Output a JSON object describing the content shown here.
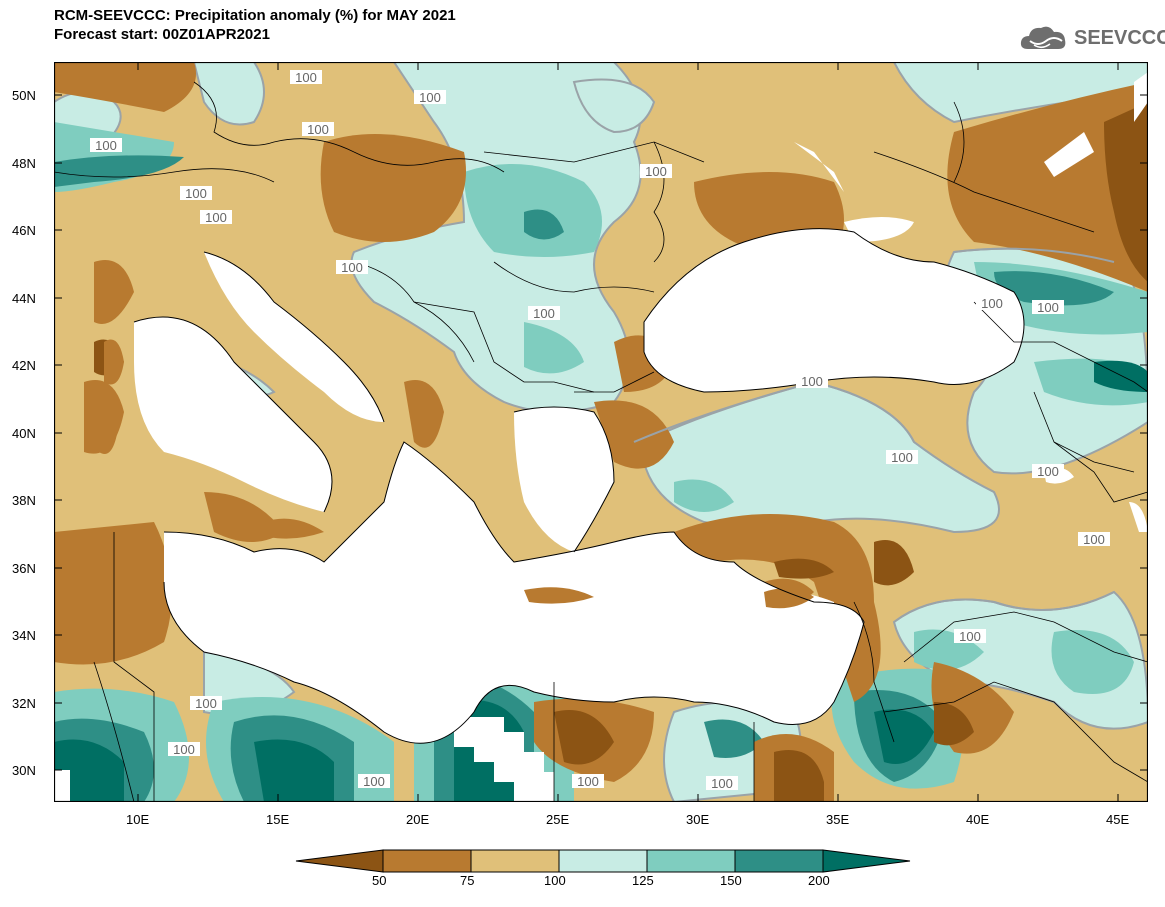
{
  "header": {
    "title": "RCM-SEEVCCC: Precipitation anomaly (%) for MAY 2021",
    "subtitle": "Forecast start: 00Z01APR2021",
    "logo_text": "SEEVCCC"
  },
  "axes": {
    "lat_labels": [
      "50N",
      "48N",
      "46N",
      "44N",
      "42N",
      "40N",
      "38N",
      "36N",
      "34N",
      "32N",
      "30N"
    ],
    "lon_labels": [
      "10E",
      "15E",
      "20E",
      "25E",
      "30E",
      "35E",
      "40E",
      "45E"
    ]
  },
  "contour_labels": [
    "100",
    "100",
    "100",
    "100",
    "100",
    "100",
    "100",
    "100",
    "100",
    "100",
    "100",
    "100",
    "100",
    "100",
    "100",
    "100",
    "100",
    "100",
    "100",
    "100",
    "100"
  ],
  "legend": {
    "ticks": [
      "50",
      "75",
      "100",
      "125",
      "150",
      "200"
    ],
    "colors": [
      "#8c5414",
      "#b87a30",
      "#e0c079",
      "#c8ece4",
      "#7fcdbf",
      "#2e8f86",
      "#006f63"
    ]
  },
  "colors": {
    "land_dry_dark": "#8c5414",
    "land_dry": "#b87a30",
    "land_dry_light": "#e0c079",
    "land_wet_light": "#c8ece4",
    "land_wet": "#7fcdbf",
    "land_wet_dark": "#2e8f86",
    "land_wet_darkest": "#006f63",
    "sea": "#ffffff"
  }
}
